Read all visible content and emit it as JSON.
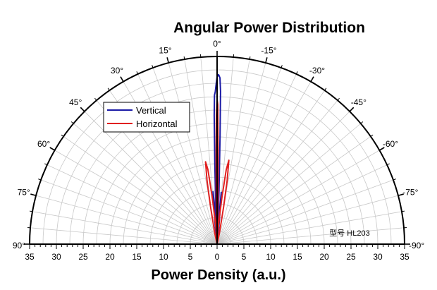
{
  "chart_data": {
    "type": "polar-half",
    "title": "Angular Power Distribution",
    "xlabel": "Power Density (a.u.)",
    "annotation": "型号 HL203",
    "radial_range": [
      0,
      35
    ],
    "radial_ticks": [
      35,
      30,
      25,
      20,
      15,
      10,
      5,
      0,
      5,
      10,
      15,
      20,
      25,
      30,
      35
    ],
    "angle_range_deg": [
      -90,
      90
    ],
    "angle_labels": [
      "90°",
      "75°",
      "60°",
      "45°",
      "30°",
      "15°",
      "0°",
      "-15°",
      "-30°",
      "-45°",
      "-60°",
      "-75°",
      "-90°"
    ],
    "angle_label_values": [
      90,
      75,
      60,
      45,
      30,
      15,
      0,
      -15,
      -30,
      -45,
      -60,
      -75,
      -90
    ],
    "grid": true,
    "legend_position": "upper-left",
    "series": [
      {
        "name": "Vertical",
        "color": "#1a1aa6",
        "points": [
          [
            -8,
            0
          ],
          [
            -6,
            3
          ],
          [
            -5,
            6.6
          ],
          [
            -4.6,
            9.7
          ],
          [
            -4.3,
            6
          ],
          [
            -3.5,
            4
          ],
          [
            -2.5,
            4.7
          ],
          [
            -2.0,
            10
          ],
          [
            -1.6,
            20
          ],
          [
            -1.3,
            28.5
          ],
          [
            -1.0,
            31
          ],
          [
            -0.5,
            31.6
          ],
          [
            0,
            31.2
          ],
          [
            0.3,
            30
          ],
          [
            0.7,
            28.4
          ],
          [
            1.0,
            27.8
          ],
          [
            1.3,
            24
          ],
          [
            1.6,
            15
          ],
          [
            2.0,
            8
          ],
          [
            2.5,
            4.3
          ],
          [
            3.0,
            3.5
          ],
          [
            3.5,
            5
          ],
          [
            4.0,
            7.8
          ],
          [
            4.5,
            9.8
          ],
          [
            5.0,
            7
          ],
          [
            6,
            3
          ],
          [
            8,
            0
          ]
        ]
      },
      {
        "name": "Horizontal",
        "color": "#e02020",
        "points": [
          [
            -14,
            0
          ],
          [
            -12,
            2
          ],
          [
            -10,
            7
          ],
          [
            -9,
            12
          ],
          [
            -8,
            15.8
          ],
          [
            -7,
            14
          ],
          [
            -6,
            9
          ],
          [
            -5,
            5
          ],
          [
            -4,
            3
          ],
          [
            -3,
            1.6
          ],
          [
            -2,
            1
          ],
          [
            -1.5,
            2
          ],
          [
            -1.0,
            8
          ],
          [
            -0.6,
            18
          ],
          [
            -0.3,
            26
          ],
          [
            0,
            27
          ],
          [
            0.3,
            24
          ],
          [
            0.6,
            16
          ],
          [
            1.0,
            8
          ],
          [
            1.5,
            2
          ],
          [
            2,
            1
          ],
          [
            3,
            1.6
          ],
          [
            4,
            3
          ],
          [
            5,
            5
          ],
          [
            6,
            9
          ],
          [
            7,
            14
          ],
          [
            8,
            15.5
          ],
          [
            9,
            12
          ],
          [
            10,
            7
          ],
          [
            12,
            2
          ],
          [
            14,
            0
          ]
        ]
      }
    ]
  }
}
